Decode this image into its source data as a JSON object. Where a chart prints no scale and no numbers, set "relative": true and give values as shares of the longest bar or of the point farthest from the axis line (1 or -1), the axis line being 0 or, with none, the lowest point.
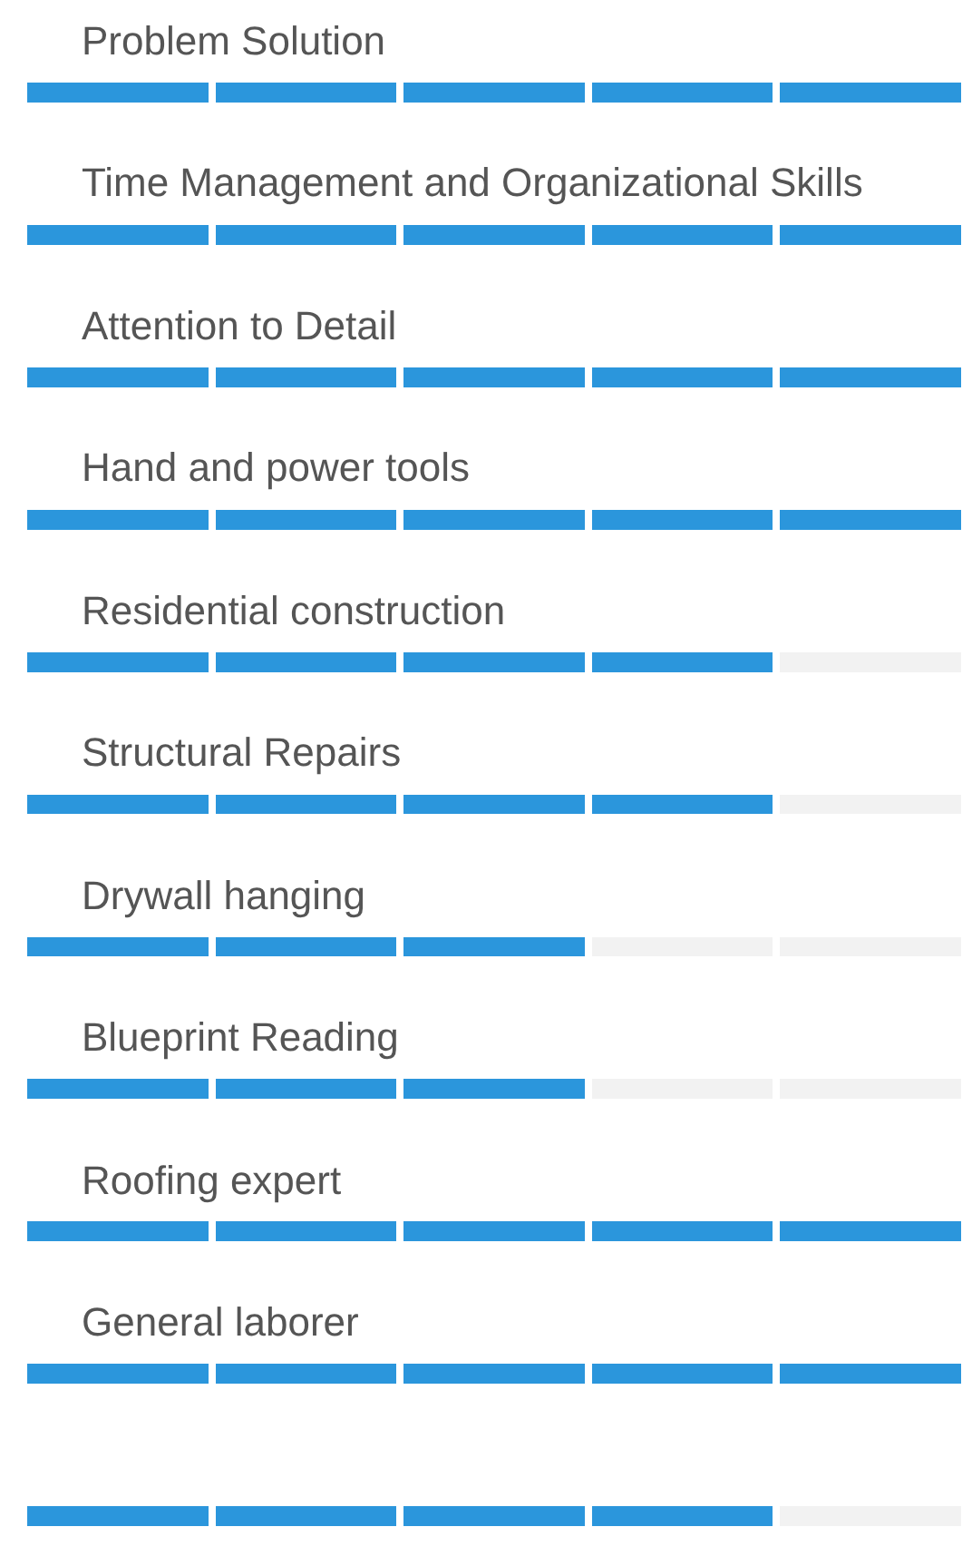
{
  "chart_data": {
    "type": "bar",
    "orientation": "horizontal",
    "stacked": true,
    "relative": true,
    "categories": [
      "Problem Solution",
      "Time Management and Organizational Skills",
      "Attention to Detail",
      "Hand and power tools",
      "Residential construction",
      "Structural Repairs",
      "Drywall hanging",
      "Blueprint Reading",
      "Roofing expert",
      "General laborer",
      null
    ],
    "series": [
      {
        "values": [
          0.2,
          0.2,
          0.2,
          0.2,
          0.2,
          0.2,
          0.2,
          0.2,
          0.2,
          0.2,
          0.2
        ],
        "colors": [
          "#2b96dc",
          "#2b96dc",
          "#2b96dc",
          "#2b96dc",
          "#2b96dc",
          "#2b96dc",
          "#2b96dc",
          "#2b96dc",
          "#2b96dc",
          "#2b96dc",
          "#2b96dc"
        ]
      },
      {
        "values": [
          0.2,
          0.2,
          0.2,
          0.2,
          0.2,
          0.2,
          0.2,
          0.2,
          0.2,
          0.2,
          0.2
        ],
        "colors": [
          "#2b96dc",
          "#2b96dc",
          "#2b96dc",
          "#2b96dc",
          "#2b96dc",
          "#2b96dc",
          "#2b96dc",
          "#2b96dc",
          "#2b96dc",
          "#2b96dc",
          "#2b96dc"
        ]
      },
      {
        "values": [
          0.2,
          0.2,
          0.2,
          0.2,
          0.2,
          0.2,
          0.2,
          0.2,
          0.2,
          0.2,
          0.2
        ],
        "colors": [
          "#2b96dc",
          "#2b96dc",
          "#2b96dc",
          "#2b96dc",
          "#2b96dc",
          "#2b96dc",
          "#2b96dc",
          "#2b96dc",
          "#2b96dc",
          "#2b96dc",
          "#2b96dc"
        ]
      },
      {
        "values": [
          0.2,
          0.2,
          0.2,
          0.2,
          0.2,
          0.2,
          0.2,
          0.2,
          0.2,
          0.2,
          0.2
        ],
        "colors": [
          "#2b96dc",
          "#2b96dc",
          "#2b96dc",
          "#2b96dc",
          "#2b96dc",
          "#2b96dc",
          "#f2f2f2",
          "#f2f2f2",
          "#2b96dc",
          "#2b96dc",
          "#2b96dc"
        ]
      },
      {
        "values": [
          0.2,
          0.2,
          0.2,
          0.2,
          0.2,
          0.2,
          0.2,
          0.2,
          0.2,
          0.2,
          0.2
        ],
        "colors": [
          "#2b96dc",
          "#2b96dc",
          "#2b96dc",
          "#2b96dc",
          "#f2f2f2",
          "#f2f2f2",
          "#f2f2f2",
          "#f2f2f2",
          "#2b96dc",
          "#2b96dc",
          "#f2f2f2"
        ]
      }
    ]
  }
}
